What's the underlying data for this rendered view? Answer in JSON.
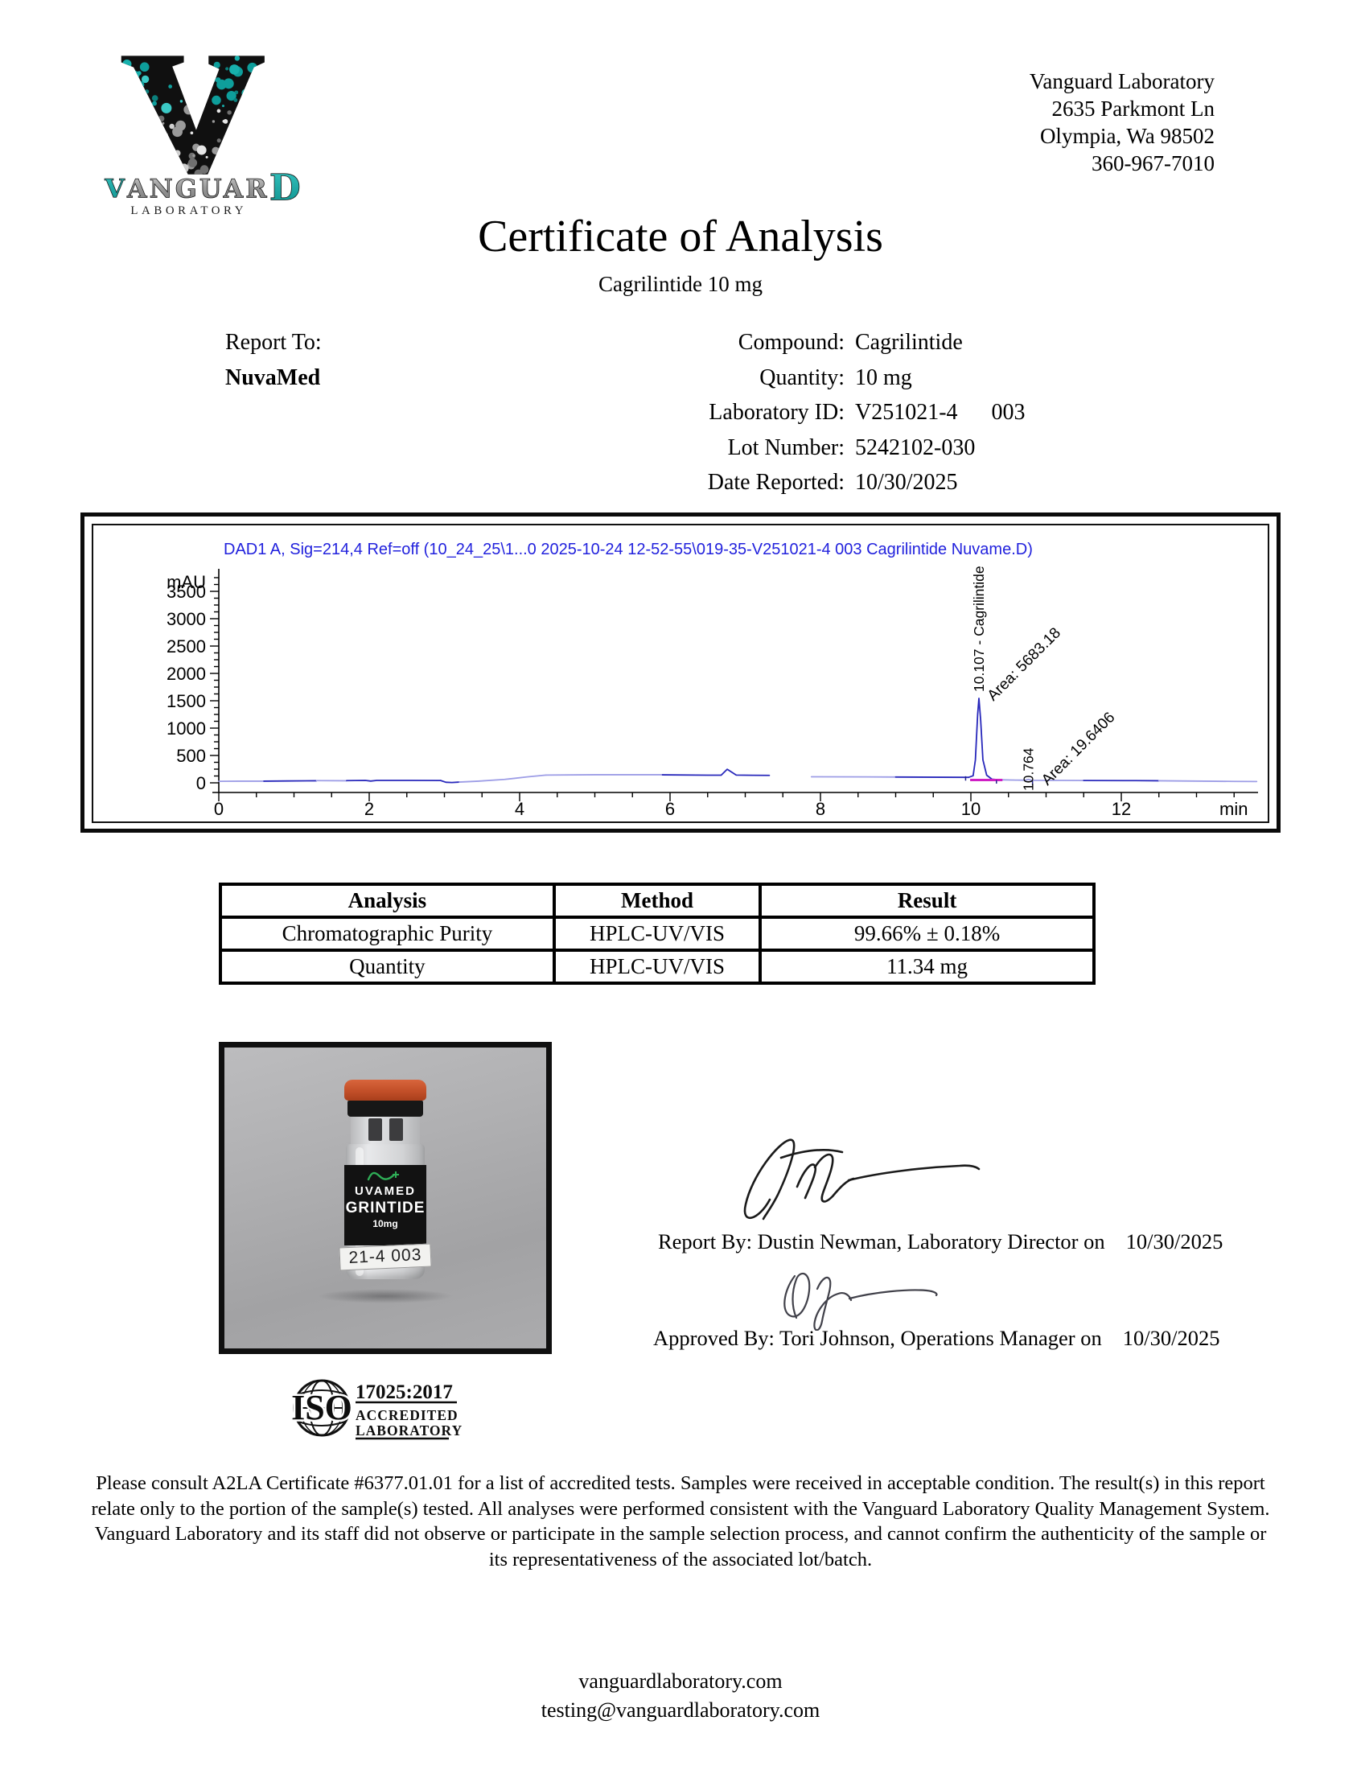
{
  "header": {
    "company": "Vanguard Laboratory",
    "address_line1": "2635 Parkmont Ln",
    "address_line2": "Olympia, Wa 98502",
    "phone": "360-967-7010",
    "logo": {
      "letter": "V",
      "word_start": "V",
      "word_mid": "ANGUAR",
      "word_end": "D",
      "sub": "LABORATORY"
    }
  },
  "title": {
    "main": "Certificate of Analysis",
    "subtitle": "Cagrilintide 10 mg"
  },
  "report_to": {
    "label": "Report To:",
    "value": "NuvaMed"
  },
  "info": {
    "rows": [
      {
        "label": "Compound:",
        "value": "Cagrilintide"
      },
      {
        "label": "Quantity:",
        "value": "10 mg"
      },
      {
        "label": "Laboratory ID:",
        "value": "V251021-4      003"
      },
      {
        "label": "Lot Number:",
        "value": "5242102-030"
      },
      {
        "label": "Date Reported:",
        "value": "10/30/2025"
      }
    ]
  },
  "chart_data": {
    "type": "line",
    "title": "DAD1 A, Sig=214,4 Ref=off (10_24_25\\1...0 2025-10-24 12-52-55\\019-35-V251021-4 003 Cagrilintide Nuvame.D)",
    "xlabel": "min",
    "ylabel": "mAU",
    "xlim": [
      0,
      13.8
    ],
    "ylim": [
      -170,
      3900
    ],
    "xticks": [
      0,
      2,
      4,
      6,
      8,
      10,
      12
    ],
    "yticks": [
      0,
      500,
      1000,
      1500,
      2000,
      2500,
      3000,
      3500
    ],
    "grid": false,
    "colors": {
      "trace_dark": "#2828bb",
      "trace_light": "#9d9de6",
      "integration": "#cf1fc4",
      "header_text": "#2222dd"
    },
    "peaks": [
      {
        "rt": "10.107",
        "name": "Cagrilintide",
        "area_label": "Area: 5683.18",
        "height_mau": 1544
      },
      {
        "rt": "10.764",
        "name": "",
        "area_label": "Area: 19.6406",
        "height_mau": 62
      }
    ],
    "trace_segments": [
      {
        "color": "light",
        "points": [
          [
            0,
            28
          ],
          [
            0.3,
            30
          ],
          [
            0.6,
            30
          ]
        ]
      },
      {
        "color": "dark",
        "points": [
          [
            0.6,
            30
          ],
          [
            0.9,
            34
          ],
          [
            1.3,
            38
          ]
        ]
      },
      {
        "color": "light",
        "points": [
          [
            1.3,
            40
          ],
          [
            1.7,
            38
          ]
        ]
      },
      {
        "color": "dark",
        "points": [
          [
            1.7,
            40
          ],
          [
            1.95,
            44
          ],
          [
            2.02,
            32
          ],
          [
            2.1,
            44
          ],
          [
            2.5,
            44
          ],
          [
            2.95,
            42
          ]
        ]
      },
      {
        "color": "dark",
        "points": [
          [
            2.95,
            42
          ],
          [
            3.02,
            10
          ],
          [
            3.1,
            6
          ],
          [
            3.2,
            14
          ]
        ]
      },
      {
        "color": "light",
        "points": [
          [
            3.2,
            14
          ],
          [
            3.45,
            30
          ],
          [
            3.8,
            62
          ],
          [
            4.1,
            108
          ],
          [
            4.35,
            142
          ]
        ]
      },
      {
        "color": "light",
        "points": [
          [
            4.35,
            142
          ],
          [
            5.0,
            148
          ],
          [
            5.9,
            148
          ]
        ]
      },
      {
        "color": "dark",
        "points": [
          [
            5.9,
            146
          ],
          [
            6.5,
            140
          ],
          [
            6.68,
            140
          ],
          [
            6.76,
            248
          ],
          [
            6.88,
            142
          ],
          [
            7.1,
            138
          ],
          [
            7.32,
            136
          ]
        ]
      },
      {
        "color": "light",
        "points": [
          [
            7.88,
            110
          ],
          [
            8.6,
            108
          ],
          [
            9.0,
            106
          ]
        ]
      },
      {
        "color": "dark",
        "points": [
          [
            9.0,
            106
          ],
          [
            9.6,
            102
          ],
          [
            9.97,
            100
          ]
        ]
      },
      {
        "color": "dark",
        "points": [
          [
            9.97,
            100
          ],
          [
            10.03,
            130
          ],
          [
            10.06,
            420
          ],
          [
            10.09,
            1250
          ],
          [
            10.107,
            1544
          ],
          [
            10.13,
            1150
          ],
          [
            10.16,
            420
          ],
          [
            10.21,
            140
          ],
          [
            10.28,
            66
          ],
          [
            10.36,
            56
          ]
        ]
      },
      {
        "color": "light",
        "points": [
          [
            10.36,
            56
          ],
          [
            10.6,
            50
          ],
          [
            10.72,
            48
          ],
          [
            10.764,
            62
          ],
          [
            10.81,
            46
          ],
          [
            11.2,
            44
          ],
          [
            11.5,
            42
          ]
        ]
      },
      {
        "color": "dark",
        "points": [
          [
            11.5,
            42
          ],
          [
            12.2,
            40
          ],
          [
            12.5,
            38
          ]
        ]
      },
      {
        "color": "light",
        "points": [
          [
            12.5,
            38
          ],
          [
            13.1,
            30
          ],
          [
            13.5,
            26
          ],
          [
            13.8,
            24
          ]
        ]
      }
    ],
    "integration_baseline": {
      "points": [
        [
          9.99,
          52
        ],
        [
          10.42,
          52
        ]
      ]
    },
    "integration_marks": [
      {
        "x": 9.93,
        "v1": 40,
        "v2": 120
      },
      {
        "x": 10.34,
        "v1": -15,
        "v2": 50
      },
      {
        "x": 10.82,
        "v1": -45,
        "v2": 30
      }
    ]
  },
  "results_table": {
    "headers": [
      "Analysis",
      "Method",
      "Result"
    ],
    "rows": [
      [
        "Chromatographic Purity",
        "HPLC-UV/VIS",
        "99.66% ± 0.18%"
      ],
      [
        "Quantity",
        "HPLC-UV/VIS",
        "11.34 mg"
      ]
    ]
  },
  "vial_photo": {
    "brand_fragment": "UVAMED",
    "product_fragment": "GRINTIDE",
    "strength": "10mg",
    "sticker": "21-4 003"
  },
  "signatures": [
    {
      "line": "Report By: Dustin Newman, Laboratory Director on",
      "date": "10/30/2025"
    },
    {
      "line": "Approved By: Tori Johnson, Operations Manager on",
      "date": "10/30/2025"
    }
  ],
  "accreditation": {
    "iso": "ISO",
    "standard": "17025:2017",
    "line1": "ACCREDITED",
    "line2": "LABORATORY"
  },
  "disclaimer": "Please consult A2LA Certificate #6377.01.01 for a list of accredited tests. Samples were received in acceptable condition. The result(s) in this report relate only to the portion of the sample(s) tested. All analyses were performed consistent with the Vanguard Laboratory Quality Management System. Vanguard Laboratory and its staff did not observe or participate in the sample selection process, and cannot confirm the authenticity of the sample or its representativeness of the associated lot/batch.",
  "footer": {
    "website": "vanguardlaboratory.com",
    "email": "testing@vanguardlaboratory.com"
  }
}
